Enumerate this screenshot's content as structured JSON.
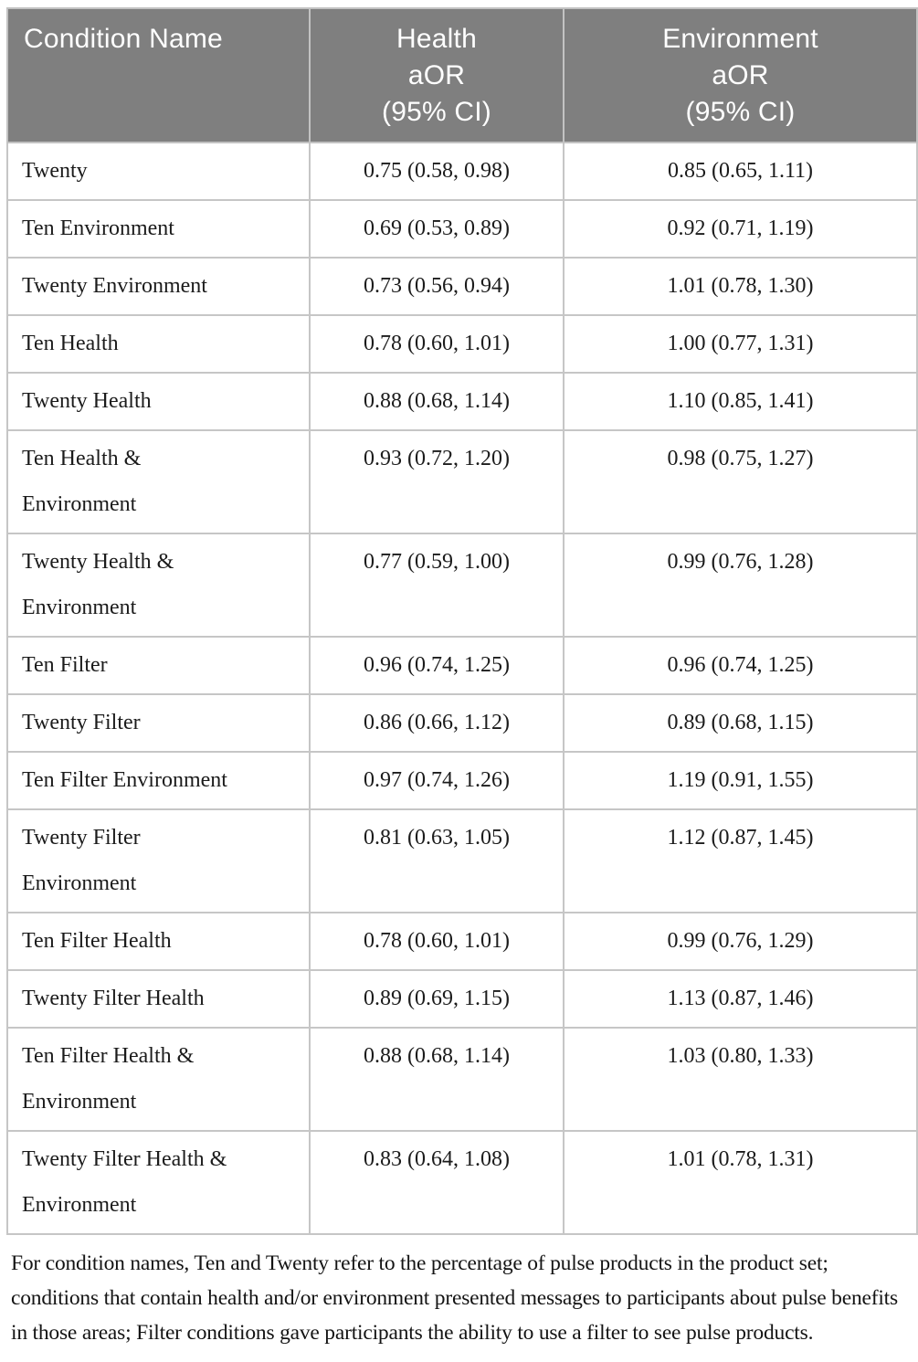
{
  "table": {
    "header": {
      "bg_color": "#7f7f7f",
      "text_color": "#ffffff",
      "border_color": "#c6c6c6",
      "columns": [
        {
          "label": "Condition Name"
        },
        {
          "label": "Health\naOR\n(95% CI)"
        },
        {
          "label": "Environment\naOR\n(95% CI)"
        }
      ]
    },
    "rows": [
      {
        "name": "Twenty",
        "health": "0.75 (0.58, 0.98)",
        "environment": "0.85 (0.65, 1.11)"
      },
      {
        "name": "Ten Environment",
        "health": "0.69 (0.53, 0.89)",
        "environment": "0.92 (0.71, 1.19)"
      },
      {
        "name": "Twenty Environment",
        "health": "0.73 (0.56, 0.94)",
        "environment": "1.01 (0.78, 1.30)"
      },
      {
        "name": "Ten Health",
        "health": "0.78 (0.60, 1.01)",
        "environment": "1.00 (0.77, 1.31)"
      },
      {
        "name": "Twenty Health",
        "health": "0.88 (0.68, 1.14)",
        "environment": "1.10 (0.85, 1.41)"
      },
      {
        "name": "Ten Health &\nEnvironment",
        "health": "0.93 (0.72, 1.20)",
        "environment": "0.98 (0.75, 1.27)"
      },
      {
        "name": "Twenty Health &\nEnvironment",
        "health": "0.77 (0.59, 1.00)",
        "environment": "0.99 (0.76, 1.28)"
      },
      {
        "name": "Ten Filter",
        "health": "0.96 (0.74, 1.25)",
        "environment": "0.96 (0.74, 1.25)"
      },
      {
        "name": "Twenty Filter",
        "health": "0.86 (0.66, 1.12)",
        "environment": "0.89 (0.68, 1.15)"
      },
      {
        "name": "Ten Filter Environment",
        "health": "0.97 (0.74, 1.26)",
        "environment": "1.19 (0.91, 1.55)"
      },
      {
        "name": "Twenty Filter\nEnvironment",
        "health": "0.81 (0.63, 1.05)",
        "environment": "1.12 (0.87, 1.45)"
      },
      {
        "name": "Ten Filter Health",
        "health": "0.78 (0.60, 1.01)",
        "environment": "0.99 (0.76, 1.29)"
      },
      {
        "name": "Twenty Filter Health",
        "health": "0.89 (0.69, 1.15)",
        "environment": "1.13 (0.87, 1.46)"
      },
      {
        "name": "Ten Filter Health &\nEnvironment",
        "health": "0.88 (0.68, 1.14)",
        "environment": "1.03 (0.80, 1.33)"
      },
      {
        "name": "Twenty Filter Health &\nEnvironment",
        "health": "0.83 (0.64, 1.08)",
        "environment": "1.01 (0.78, 1.31)"
      }
    ]
  },
  "footnote": {
    "text": "For condition names, Ten and Twenty refer to the percentage of pulse products in the product set; conditions that contain health and/or environment presented messages to participants about pulse benefits in those areas; Filter conditions gave participants the ability to use a filter to see pulse products."
  }
}
